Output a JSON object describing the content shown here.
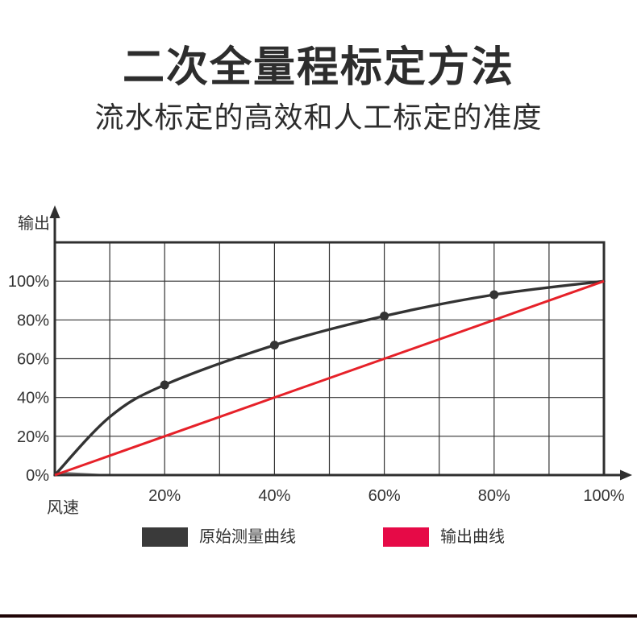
{
  "header": {
    "title": "二次全量程标定方法",
    "subtitle": "流水标定的高效和人工标定的准度"
  },
  "chart_data": {
    "type": "line",
    "title": "",
    "xlabel": "风速",
    "ylabel": "输出",
    "xlim": [
      0,
      100
    ],
    "ylim": [
      0,
      120
    ],
    "grid": {
      "on": true,
      "x_step": 10,
      "y_step": 20
    },
    "x_tick_values": [
      20,
      40,
      60,
      80,
      100
    ],
    "x_tick_labels": [
      "20%",
      "40%",
      "60%",
      "80%",
      "100%"
    ],
    "y_tick_values": [
      0,
      20,
      40,
      60,
      80,
      100
    ],
    "y_tick_labels": [
      "0%",
      "20%",
      "40%",
      "60%",
      "80%",
      "100%"
    ],
    "axis_color": "#2f2f2f",
    "grid_color": "#333333",
    "series": [
      {
        "name": "原始测量曲线",
        "style": "smooth",
        "color": "#333333",
        "x": [
          0,
          10,
          20,
          40,
          60,
          80,
          100
        ],
        "values": [
          0,
          30,
          46.5,
          67,
          82,
          93,
          100
        ],
        "marker_x": [
          20,
          40,
          60,
          80
        ]
      },
      {
        "name": "输出曲线",
        "style": "straight",
        "color": "#e62129",
        "x": [
          0,
          100
        ],
        "values": [
          0,
          100
        ],
        "marker_x": []
      }
    ],
    "legend_position": "bottom"
  },
  "legend": {
    "items": [
      {
        "label": "原始测量曲线",
        "color": "#3a3a3a"
      },
      {
        "label": "输出曲线",
        "color": "#e60a47"
      }
    ]
  },
  "footer": {
    "divider_colors": [
      "#1c0405",
      "#5a101a"
    ]
  }
}
